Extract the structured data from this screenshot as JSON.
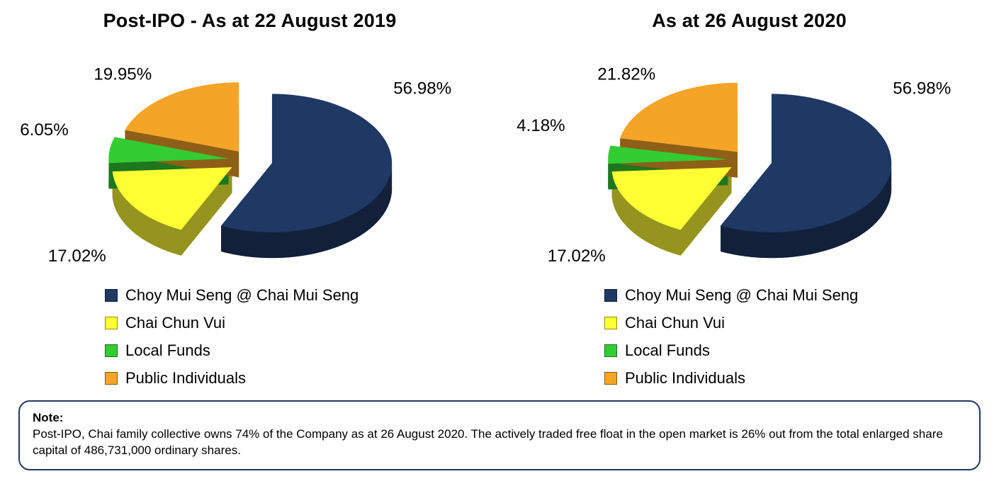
{
  "chart_data": [
    {
      "type": "pie",
      "style": "3d-exploded-pie",
      "title": "Post-IPO - As at 22 August 2019",
      "labels": [
        "Choy Mui Seng @ Chai Mui Seng",
        "Chai Chun Vui",
        "Local Funds",
        "Public Individuals"
      ],
      "values": [
        56.98,
        17.02,
        6.05,
        19.95
      ],
      "value_labels": [
        "56.98%",
        "17.02%",
        "6.05%",
        "19.95%"
      ],
      "colors": [
        "#1F3864",
        "#FFFF33",
        "#33CC33",
        "#F4A427"
      ],
      "legend_position": "bottom-left"
    },
    {
      "type": "pie",
      "style": "3d-exploded-pie",
      "title": "As at 26 August 2020",
      "labels": [
        "Choy Mui Seng @ Chai Mui Seng",
        "Chai Chun Vui",
        "Local Funds",
        "Public Individuals"
      ],
      "values": [
        56.98,
        17.02,
        4.18,
        21.82
      ],
      "value_labels": [
        "56.98%",
        "17.02%",
        "4.18%",
        "21.82%"
      ],
      "colors": [
        "#1F3864",
        "#FFFF33",
        "#33CC33",
        "#F4A427"
      ],
      "legend_position": "bottom-left"
    }
  ],
  "note": {
    "heading": "Note:",
    "body": "Post-IPO, Chai family collective owns 74% of the Company as at 26 August 2020.  The actively traded free float in the open market is 26% out from the total enlarged share capital of 486,731,000 ordinary shares.",
    "border_color": "#1F3864"
  },
  "text_color": "#000000"
}
